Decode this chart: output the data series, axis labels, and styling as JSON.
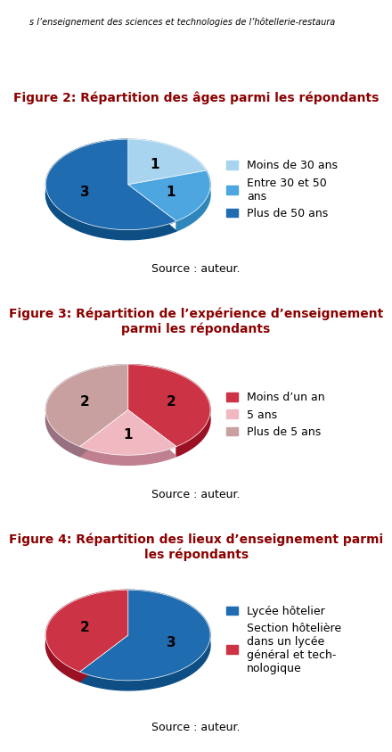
{
  "fig1": {
    "title": "Figure 2: Répartition des âges parmi les répondants",
    "values": [
      1,
      1,
      3
    ],
    "labels": [
      "1",
      "1",
      "3"
    ],
    "colors": [
      "#A8D4F0",
      "#4DA6E0",
      "#1F6CB0"
    ],
    "shadow_colors": [
      "#7BAEC8",
      "#2E86BA",
      "#0D4F85"
    ],
    "legend_labels": [
      "Moins de 30 ans",
      "Entre 30 et 50\nans",
      "Plus de 50 ans"
    ],
    "startangle": 90,
    "counterclock": false
  },
  "fig2": {
    "title": "Figure 3: Répartition de l’expérience d’enseignement\nparmi les répondants",
    "values": [
      2,
      1,
      2
    ],
    "labels": [
      "2",
      "1",
      "2"
    ],
    "colors": [
      "#CC3344",
      "#F0B8C0",
      "#C8A0A0"
    ],
    "shadow_colors": [
      "#991122",
      "#C08090",
      "#987080"
    ],
    "legend_labels": [
      "Moins d’un an",
      "5 ans",
      "Plus de 5 ans"
    ],
    "startangle": 90,
    "counterclock": false
  },
  "fig3": {
    "title": "Figure 4: Répartition des lieux d’enseignement parmi\nles répondants",
    "values": [
      3,
      2
    ],
    "labels": [
      "3",
      "2"
    ],
    "colors": [
      "#1F6CB0",
      "#CC3344"
    ],
    "shadow_colors": [
      "#0D4F85",
      "#991122"
    ],
    "legend_labels": [
      "Lycée hôtelier",
      "Section hôtelière\ndans un lycée\ngénéral et tech-\nnologique"
    ],
    "startangle": 90,
    "counterclock": false
  },
  "source_text": "Source : auteur.",
  "title_color": "#8B0000",
  "title_fontsize": 10,
  "label_fontsize": 11,
  "legend_fontsize": 9,
  "background_color": "#FFFFFF",
  "header_text": "s l’enseignement des sciences et technologies de l’hôtellerie-restaura"
}
